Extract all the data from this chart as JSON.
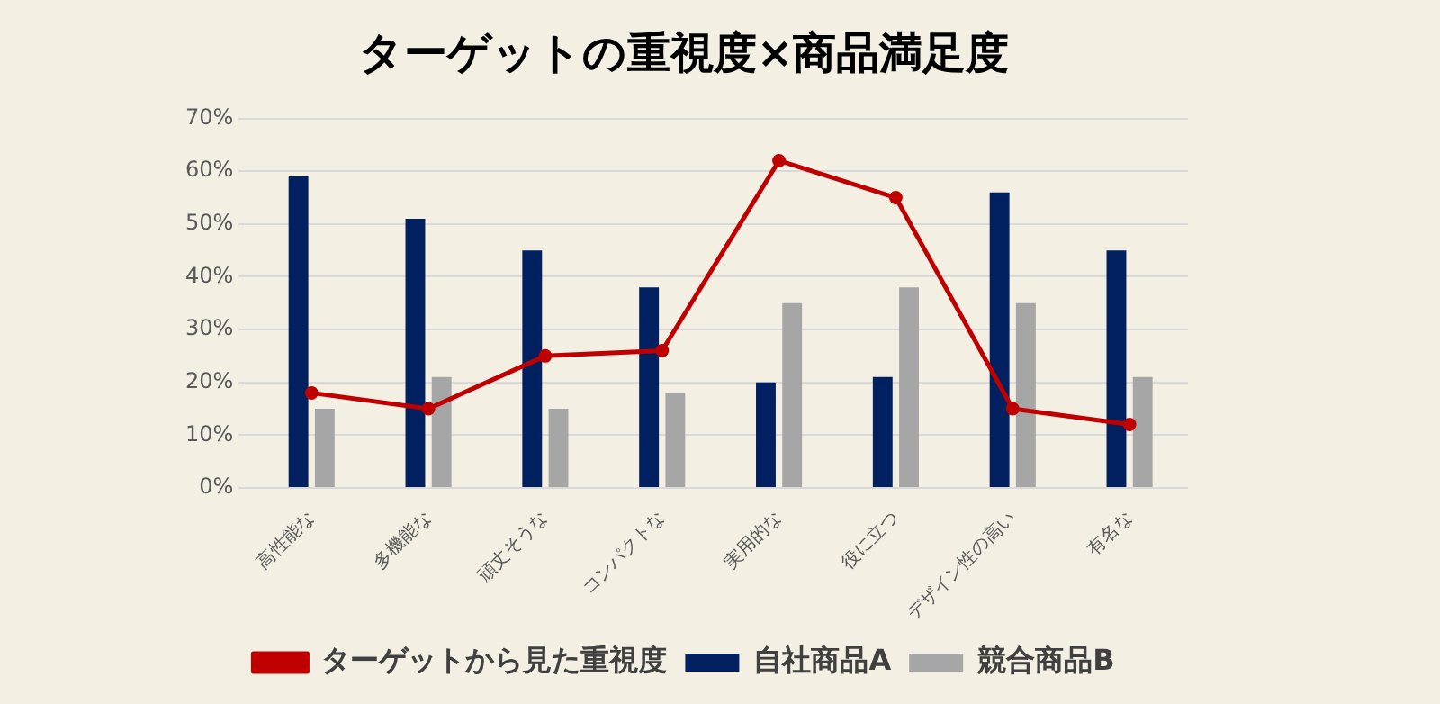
{
  "chart_data": {
    "type": "bar",
    "title": "ターゲットの重視度×商品満足度",
    "categories": [
      "高性能な",
      "多機能な",
      "頑丈そうな",
      "コンパクトな",
      "実用的な",
      "役に立つ",
      "デザイン性の高い",
      "有名な"
    ],
    "series": [
      {
        "name": "自社商品A",
        "color": "#002060",
        "values": [
          59,
          51,
          45,
          38,
          20,
          21,
          56,
          45
        ]
      },
      {
        "name": "競合商品B",
        "color": "#a6a6a6",
        "values": [
          15,
          21,
          15,
          18,
          35,
          38,
          35,
          21
        ]
      },
      {
        "name": "ターゲットから見た重視度",
        "type": "line",
        "color": "#c00000",
        "values": [
          18,
          15,
          25,
          26,
          62,
          55,
          15,
          12
        ]
      }
    ],
    "ylim": [
      0,
      70
    ],
    "yticks": [
      {
        "value": 0,
        "label": "0%"
      },
      {
        "value": 10,
        "label": "10%"
      },
      {
        "value": 20,
        "label": "20%"
      },
      {
        "value": 30,
        "label": "30%"
      },
      {
        "value": 40,
        "label": "40%"
      },
      {
        "value": 50,
        "label": "50%"
      },
      {
        "value": 60,
        "label": "60%"
      },
      {
        "value": 70,
        "label": "70%"
      }
    ],
    "grid": "y",
    "legend": "bottom",
    "marker": "circle",
    "line_style": "solid"
  }
}
